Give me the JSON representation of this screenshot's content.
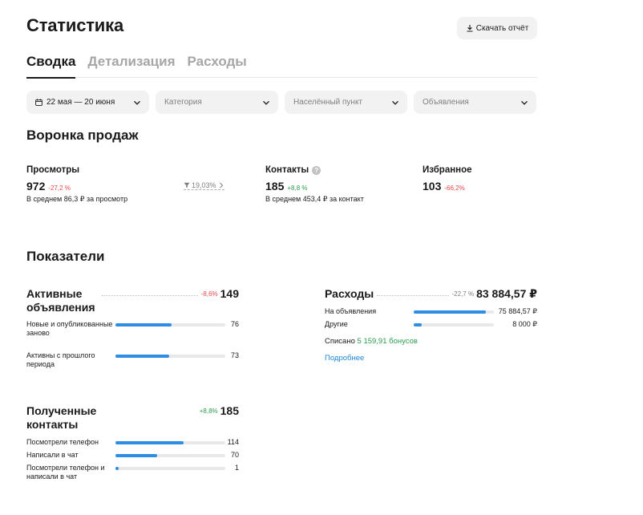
{
  "header": {
    "title": "Статистика",
    "download_label": "Скачать отчёт"
  },
  "tabs": [
    {
      "label": "Сводка",
      "active": true
    },
    {
      "label": "Детализация",
      "active": false
    },
    {
      "label": "Расходы",
      "active": false
    }
  ],
  "filters": {
    "period": "22 мая — 20 июня",
    "category_placeholder": "Категория",
    "city_placeholder": "Населённый пункт",
    "ads_placeholder": "Объявления"
  },
  "funnel": {
    "title": "Воронка продаж",
    "views": {
      "label": "Просмотры",
      "value": "972",
      "delta": "-27,2 %",
      "sub": "В среднем 86,3 ₽ за просмотр"
    },
    "conversion": "19,03%",
    "contacts": {
      "label": "Контакты",
      "value": "185",
      "delta": "+8,8 %",
      "sub": "В среднем 453,4 ₽ за контакт"
    },
    "favorites": {
      "label": "Избранное",
      "value": "103",
      "delta": "-66,2%"
    }
  },
  "indicators": {
    "title": "Показатели",
    "active_ads": {
      "title": "Активные объявления",
      "delta": "-8,6%",
      "value": "149",
      "rows": [
        {
          "label": "Новые и опубликованные заново",
          "value": "76",
          "fill": 0.51
        },
        {
          "label": "Активны с прошлого периода",
          "value": "73",
          "fill": 0.49
        }
      ]
    },
    "received_contacts": {
      "title": "Полученные контакты",
      "delta": "+8,8%",
      "value": "185",
      "rows": [
        {
          "label": "Посмотрели телефон",
          "value": "114",
          "fill": 0.62
        },
        {
          "label": "Написали в чат",
          "value": "70",
          "fill": 0.38
        },
        {
          "label": "Посмотрели телефон и написали в чат",
          "value": "1",
          "fill": 0.03
        }
      ]
    },
    "expenses": {
      "title": "Расходы",
      "delta": "-22,7 %",
      "value": "83 884,57 ₽",
      "rows": [
        {
          "label": "На объявления",
          "value": "75 884,57 ₽",
          "fill": 0.9
        },
        {
          "label": "Другие",
          "value": "8 000 ₽",
          "fill": 0.1
        }
      ],
      "written_off_label": "Списано",
      "written_off_bonus": "5 159,91 бонусов",
      "more_link": "Подробнее"
    }
  },
  "colors": {
    "accent_bar": "#2e8ee3",
    "negative": "#e8484a",
    "positive": "#2a9d4c",
    "link": "#1e86d6"
  }
}
